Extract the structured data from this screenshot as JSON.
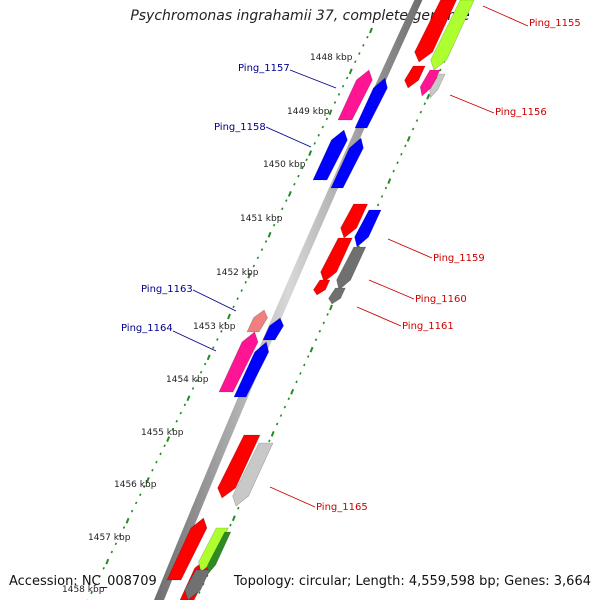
{
  "title": "Psychromonas ingrahamii 37, complete genome",
  "footer": {
    "accession": "Accession: NC_008709",
    "summary": "Topology: circular; Length: 4,559,598 bp; Genes: 3,664"
  },
  "kbp_ticks": [
    "1448 kbp",
    "1449 kbp",
    "1450 kbp",
    "1451 kbp",
    "1452 kbp",
    "1453 kbp",
    "1454 kbp",
    "1455 kbp",
    "1456 kbp",
    "1457 kbp",
    "1458 kbp"
  ],
  "gene_labels": {
    "ping_1155": "Ping_1155",
    "ping_1156": "Ping_1156",
    "ping_1157": "Ping_1157",
    "ping_1158": "Ping_1158",
    "ping_1159": "Ping_1159",
    "ping_1160": "Ping_1160",
    "ping_1161": "Ping_1161",
    "ping_1163": "Ping_1163",
    "ping_1164": "Ping_1164",
    "ping_1165": "Ping_1165"
  },
  "colors": {
    "red": "#ff0000",
    "blue": "#0000ff",
    "magenta": "#ff1493",
    "pink": "#f08080",
    "gray": "#707070",
    "lightgray": "#c8c8c8",
    "lime": "#adff2f",
    "green": "#2e8b22",
    "tick_green": "#228b22",
    "label_blue": "#00008b",
    "label_red": "#cc0000"
  }
}
